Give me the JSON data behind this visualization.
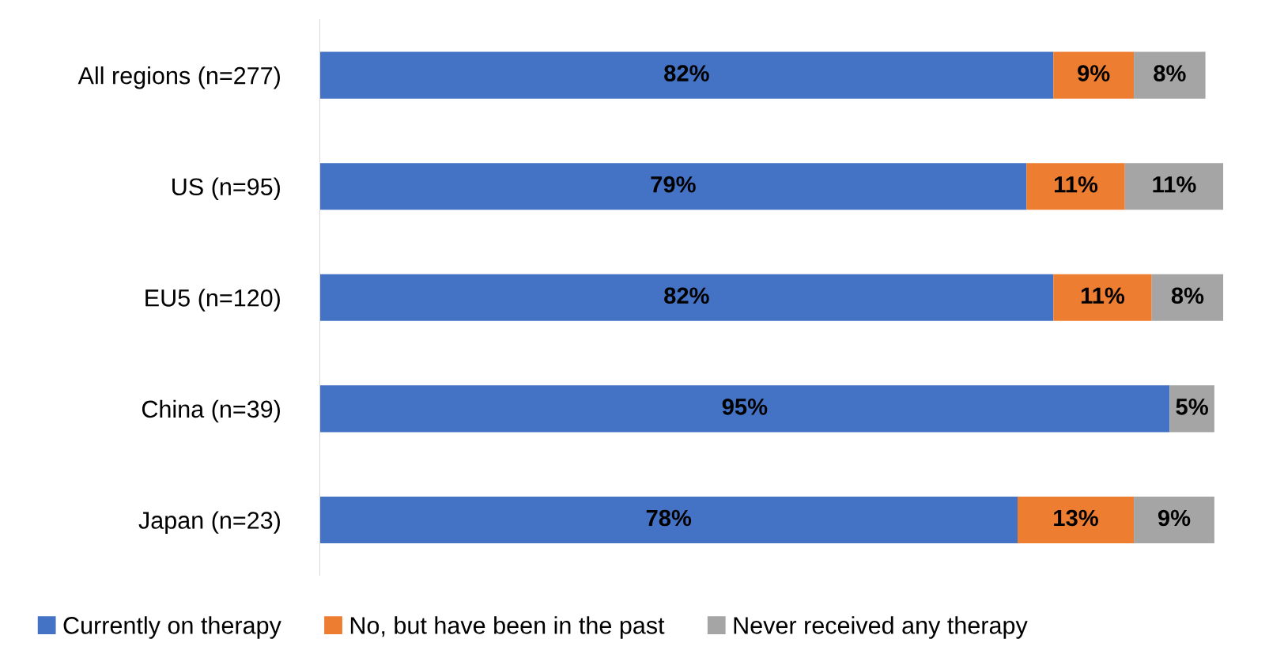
{
  "chart_data": {
    "type": "bar",
    "orientation": "horizontal",
    "stacked": true,
    "categories": [
      "All regions (n=277)",
      "US (n=95)",
      "EU5 (n=120)",
      "China (n=39)",
      "Japan (n=23)"
    ],
    "series": [
      {
        "name": "Currently on therapy",
        "color": "#4472c4",
        "values": [
          82,
          79,
          82,
          95,
          78
        ],
        "value_labels": [
          "82%",
          "79%",
          "82%",
          "95%",
          "78%"
        ]
      },
      {
        "name": "No, but have been in the past",
        "color": "#ed7d31",
        "values": [
          9,
          11,
          11,
          null,
          13
        ],
        "value_labels": [
          "9%",
          "11%",
          "11%",
          null,
          "13%"
        ]
      },
      {
        "name": "Never received any therapy",
        "color": "#a5a5a5",
        "values": [
          8,
          11,
          8,
          5,
          9
        ],
        "value_labels": [
          "8%",
          "11%",
          "8%",
          "5%",
          "9%"
        ]
      }
    ],
    "legend": "bottom",
    "grid": false,
    "tick_labels": "y"
  }
}
